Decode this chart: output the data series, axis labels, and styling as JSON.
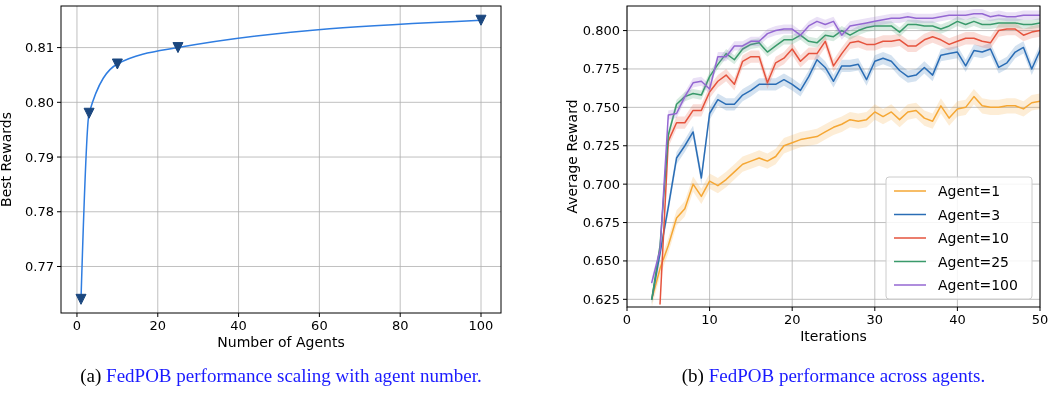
{
  "chart_data": [
    {
      "type": "line",
      "title": "(a) FedPOB performance scaling with agent number.",
      "xlabel": "Number of Agents",
      "ylabel": "Best Rewards",
      "x": [
        1,
        3,
        10,
        25,
        100
      ],
      "xlim": [
        -3.95,
        104.95
      ],
      "ylim": [
        0.7615,
        0.8176
      ],
      "xticks": [
        0,
        20,
        40,
        60,
        80,
        100
      ],
      "yticks": [
        0.77,
        0.78,
        0.79,
        {
          "value": 0.8,
          "label": "0.80"
        },
        0.81
      ],
      "grid": true,
      "marker": "triangle",
      "series": [
        {
          "color": "#2f7de1",
          "values": [
            0.764,
            0.798,
            0.807,
            0.81,
            0.815
          ]
        }
      ]
    },
    {
      "type": "line",
      "title": "(b) FedPOB performance across agents.",
      "xlabel": "Iterations",
      "ylabel": "Average Reward",
      "x": [
        3,
        4,
        5,
        6,
        7,
        8,
        9,
        10,
        11,
        12,
        13,
        14,
        15,
        16,
        17,
        18,
        19,
        20,
        21,
        22,
        23,
        24,
        25,
        26,
        27,
        28,
        29,
        30,
        31,
        32,
        33,
        34,
        35,
        36,
        37,
        38,
        39,
        40,
        41,
        42,
        43,
        44,
        45,
        46,
        47,
        48,
        49,
        50
      ],
      "xlim": [
        0,
        50
      ],
      "ylim": [
        0.62,
        0.816
      ],
      "xticks": [
        0,
        10,
        20,
        30,
        40,
        50
      ],
      "yticks": [
        0.625,
        {
          "value": 0.65,
          "label": "0.650"
        },
        0.675,
        {
          "value": 0.7,
          "label": "0.700"
        },
        0.725,
        {
          "value": 0.75,
          "label": "0.750"
        },
        0.775,
        {
          "value": 0.8,
          "label": "0.800"
        }
      ],
      "grid": true,
      "legend": "bottom right",
      "series": [
        {
          "name": "Agent=1",
          "color": "#f5a734",
          "values": [
            0.625,
            0.645,
            0.66,
            0.678,
            0.684,
            0.7,
            0.692,
            0.702,
            0.699,
            0.703,
            0.708,
            0.713,
            0.715,
            0.717,
            0.715,
            0.718,
            0.725,
            0.727,
            0.729,
            0.73,
            0.731,
            0.734,
            0.737,
            0.739,
            0.742,
            0.741,
            0.742,
            0.747,
            0.744,
            0.747,
            0.742,
            0.747,
            0.748,
            0.743,
            0.741,
            0.751,
            0.743,
            0.749,
            0.75,
            0.757,
            0.751,
            0.75,
            0.75,
            0.751,
            0.751,
            0.749,
            0.753,
            0.754
          ],
          "lower": [
            0.62,
            0.64,
            0.655,
            0.673,
            0.679,
            0.695,
            0.687,
            0.697,
            0.694,
            0.698,
            0.703,
            0.708,
            0.71,
            0.712,
            0.71,
            0.713,
            0.72,
            0.722,
            0.724,
            0.725,
            0.726,
            0.729,
            0.732,
            0.734,
            0.737,
            0.736,
            0.737,
            0.742,
            0.739,
            0.742,
            0.737,
            0.742,
            0.743,
            0.738,
            0.736,
            0.746,
            0.738,
            0.744,
            0.745,
            0.752,
            0.746,
            0.745,
            0.745,
            0.746,
            0.746,
            0.744,
            0.748,
            0.749
          ],
          "upper": [
            0.63,
            0.65,
            0.665,
            0.683,
            0.689,
            0.705,
            0.697,
            0.707,
            0.704,
            0.708,
            0.713,
            0.718,
            0.72,
            0.722,
            0.72,
            0.723,
            0.73,
            0.732,
            0.734,
            0.735,
            0.736,
            0.739,
            0.742,
            0.744,
            0.747,
            0.746,
            0.747,
            0.752,
            0.749,
            0.752,
            0.747,
            0.752,
            0.753,
            0.748,
            0.746,
            0.756,
            0.748,
            0.754,
            0.755,
            0.762,
            0.756,
            0.755,
            0.755,
            0.756,
            0.756,
            0.754,
            0.758,
            0.759
          ]
        },
        {
          "name": "Agent=3",
          "color": "#2a6db5",
          "values": [
            0.625,
            0.655,
            0.685,
            0.717,
            0.725,
            0.734,
            0.704,
            0.746,
            0.755,
            0.752,
            0.752,
            0.758,
            0.761,
            0.765,
            0.765,
            0.765,
            0.768,
            0.765,
            0.761,
            0.77,
            0.781,
            0.776,
            0.767,
            0.777,
            0.777,
            0.778,
            0.768,
            0.78,
            0.782,
            0.78,
            0.774,
            0.77,
            0.771,
            0.776,
            0.771,
            0.784,
            0.785,
            0.786,
            0.777,
            0.787,
            0.786,
            0.788,
            0.776,
            0.779,
            0.786,
            0.789,
            0.775,
            0.787
          ],
          "lower": [
            0.622,
            0.651,
            0.681,
            0.713,
            0.721,
            0.73,
            0.7,
            0.742,
            0.751,
            0.748,
            0.748,
            0.754,
            0.757,
            0.761,
            0.761,
            0.761,
            0.764,
            0.761,
            0.757,
            0.766,
            0.777,
            0.772,
            0.763,
            0.773,
            0.773,
            0.774,
            0.764,
            0.776,
            0.778,
            0.776,
            0.77,
            0.766,
            0.767,
            0.772,
            0.767,
            0.78,
            0.781,
            0.782,
            0.773,
            0.783,
            0.782,
            0.784,
            0.772,
            0.775,
            0.782,
            0.785,
            0.771,
            0.783
          ],
          "upper": [
            0.628,
            0.659,
            0.689,
            0.721,
            0.729,
            0.738,
            0.708,
            0.75,
            0.759,
            0.756,
            0.756,
            0.762,
            0.765,
            0.769,
            0.769,
            0.769,
            0.772,
            0.769,
            0.765,
            0.774,
            0.785,
            0.78,
            0.771,
            0.781,
            0.781,
            0.782,
            0.772,
            0.784,
            0.786,
            0.784,
            0.778,
            0.774,
            0.775,
            0.78,
            0.775,
            0.788,
            0.789,
            0.79,
            0.781,
            0.791,
            0.79,
            0.792,
            0.78,
            0.783,
            0.79,
            0.793,
            0.779,
            0.791
          ]
        },
        {
          "name": "Agent=10",
          "color": "#e5533d",
          "values": [
            null,
            0.622,
            0.728,
            0.74,
            0.74,
            0.748,
            0.748,
            0.76,
            0.767,
            0.771,
            0.765,
            0.78,
            0.783,
            0.783,
            0.766,
            0.779,
            0.782,
            0.788,
            0.78,
            0.785,
            0.785,
            0.793,
            0.777,
            0.785,
            0.792,
            0.793,
            0.791,
            0.791,
            0.793,
            0.793,
            0.794,
            0.79,
            0.79,
            0.794,
            0.796,
            0.794,
            0.791,
            0.793,
            0.795,
            0.795,
            0.793,
            0.792,
            0.8,
            0.801,
            0.801,
            0.797,
            0.799,
            0.8
          ],
          "lower": [
            null,
            null,
            0.724,
            0.736,
            0.736,
            0.744,
            0.744,
            0.756,
            0.763,
            0.767,
            0.761,
            0.776,
            0.779,
            0.779,
            0.762,
            0.775,
            0.778,
            0.784,
            0.776,
            0.781,
            0.781,
            0.789,
            0.773,
            0.781,
            0.788,
            0.789,
            0.787,
            0.787,
            0.789,
            0.789,
            0.79,
            0.786,
            0.786,
            0.79,
            0.792,
            0.79,
            0.787,
            0.789,
            0.791,
            0.791,
            0.789,
            0.788,
            0.796,
            0.797,
            0.797,
            0.793,
            0.795,
            0.796
          ],
          "upper": [
            null,
            null,
            0.732,
            0.744,
            0.744,
            0.752,
            0.752,
            0.764,
            0.771,
            0.775,
            0.769,
            0.784,
            0.787,
            0.787,
            0.77,
            0.783,
            0.786,
            0.792,
            0.784,
            0.789,
            0.789,
            0.797,
            0.781,
            0.789,
            0.796,
            0.797,
            0.795,
            0.795,
            0.797,
            0.797,
            0.798,
            0.794,
            0.794,
            0.798,
            0.8,
            0.798,
            0.795,
            0.797,
            0.799,
            0.799,
            0.797,
            0.796,
            0.804,
            0.805,
            0.805,
            0.801,
            0.803,
            0.804
          ]
        },
        {
          "name": "Agent=25",
          "color": "#3a9a6b",
          "values": [
            0.625,
            0.66,
            0.732,
            0.752,
            0.757,
            0.759,
            0.758,
            0.77,
            0.778,
            0.785,
            0.781,
            0.788,
            0.791,
            0.792,
            0.786,
            0.79,
            0.794,
            0.794,
            0.797,
            0.793,
            0.792,
            0.797,
            0.796,
            0.8,
            0.797,
            0.8,
            0.802,
            0.803,
            0.803,
            0.803,
            0.799,
            0.804,
            0.804,
            0.803,
            0.803,
            0.801,
            0.803,
            0.806,
            0.804,
            0.806,
            0.804,
            0.804,
            0.805,
            0.805,
            0.805,
            0.804,
            0.804,
            0.805
          ],
          "lower": [
            0.622,
            0.657,
            0.729,
            0.749,
            0.754,
            0.756,
            0.755,
            0.767,
            0.775,
            0.782,
            0.778,
            0.785,
            0.788,
            0.789,
            0.783,
            0.787,
            0.791,
            0.791,
            0.794,
            0.79,
            0.789,
            0.794,
            0.793,
            0.797,
            0.794,
            0.797,
            0.799,
            0.8,
            0.8,
            0.8,
            0.796,
            0.801,
            0.801,
            0.8,
            0.8,
            0.798,
            0.8,
            0.803,
            0.801,
            0.803,
            0.801,
            0.801,
            0.802,
            0.802,
            0.802,
            0.801,
            0.801,
            0.802
          ],
          "upper": [
            0.628,
            0.663,
            0.735,
            0.755,
            0.76,
            0.762,
            0.761,
            0.773,
            0.781,
            0.788,
            0.784,
            0.791,
            0.794,
            0.795,
            0.789,
            0.793,
            0.797,
            0.797,
            0.8,
            0.796,
            0.795,
            0.8,
            0.799,
            0.803,
            0.8,
            0.803,
            0.805,
            0.806,
            0.806,
            0.806,
            0.802,
            0.807,
            0.807,
            0.806,
            0.806,
            0.804,
            0.806,
            0.809,
            0.807,
            0.809,
            0.807,
            0.807,
            0.808,
            0.808,
            0.808,
            0.807,
            0.807,
            0.808
          ]
        },
        {
          "name": "Agent=100",
          "color": "#9467d2",
          "values": [
            0.636,
            0.657,
            0.745,
            0.746,
            0.757,
            0.766,
            0.767,
            0.762,
            0.783,
            0.783,
            0.79,
            0.79,
            0.793,
            0.793,
            0.798,
            0.8,
            0.801,
            0.801,
            0.797,
            0.803,
            0.806,
            0.804,
            0.806,
            0.797,
            0.803,
            0.804,
            0.805,
            0.806,
            0.807,
            0.808,
            0.808,
            0.809,
            0.808,
            0.808,
            0.808,
            0.809,
            0.81,
            0.81,
            0.81,
            0.811,
            0.811,
            0.809,
            0.81,
            0.809,
            0.809,
            0.81,
            0.81,
            0.81
          ],
          "lower": [
            0.633,
            0.654,
            0.742,
            0.743,
            0.754,
            0.763,
            0.764,
            0.759,
            0.78,
            0.78,
            0.787,
            0.787,
            0.79,
            0.79,
            0.795,
            0.797,
            0.798,
            0.798,
            0.794,
            0.8,
            0.803,
            0.801,
            0.803,
            0.794,
            0.8,
            0.801,
            0.802,
            0.803,
            0.804,
            0.805,
            0.805,
            0.806,
            0.805,
            0.805,
            0.805,
            0.806,
            0.807,
            0.807,
            0.807,
            0.808,
            0.808,
            0.806,
            0.807,
            0.806,
            0.806,
            0.807,
            0.807,
            0.807
          ],
          "upper": [
            0.639,
            0.66,
            0.748,
            0.749,
            0.76,
            0.769,
            0.77,
            0.765,
            0.786,
            0.786,
            0.793,
            0.793,
            0.796,
            0.796,
            0.801,
            0.803,
            0.804,
            0.804,
            0.8,
            0.806,
            0.809,
            0.807,
            0.809,
            0.8,
            0.806,
            0.807,
            0.808,
            0.809,
            0.81,
            0.811,
            0.811,
            0.812,
            0.811,
            0.811,
            0.811,
            0.812,
            0.813,
            0.813,
            0.813,
            0.814,
            0.814,
            0.812,
            0.813,
            0.812,
            0.812,
            0.813,
            0.813,
            0.813
          ]
        }
      ]
    }
  ]
}
